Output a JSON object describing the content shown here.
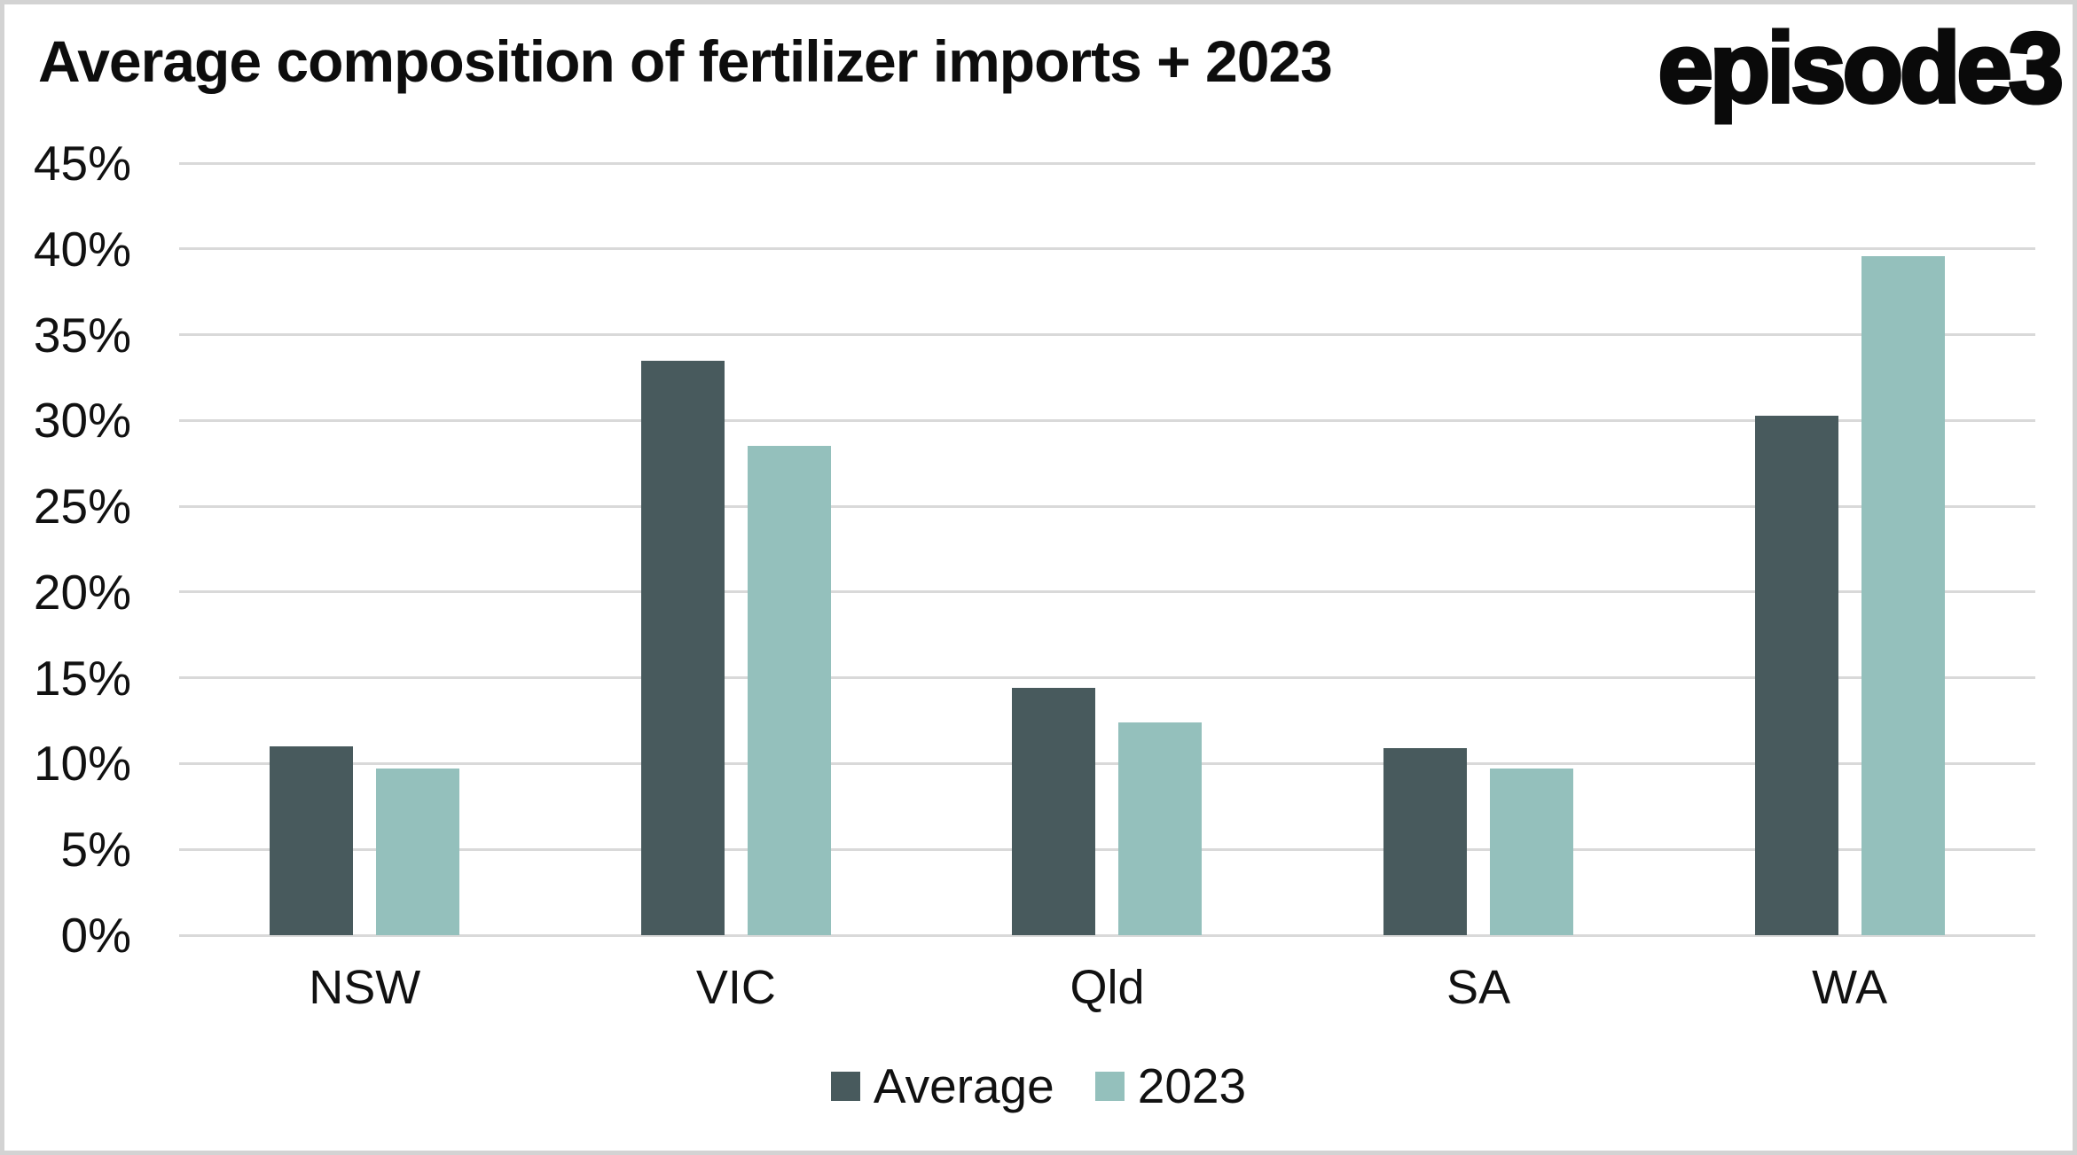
{
  "header": {
    "title": "Average composition of fertilizer imports + 2023",
    "logo": "episode3"
  },
  "colors": {
    "series_average": "#485a5d",
    "series_2023": "#94c0bc",
    "gridline": "#d9d9d9",
    "frame_border": "#d3d3d3",
    "text": "#111111"
  },
  "chart_data": {
    "type": "bar",
    "title": "Average composition of fertilizer imports + 2023",
    "categories": [
      "NSW",
      "VIC",
      "Qld",
      "SA",
      "WA"
    ],
    "series": [
      {
        "name": "Average",
        "color": "#485a5d",
        "values": [
          11.0,
          33.5,
          14.4,
          10.9,
          30.3
        ]
      },
      {
        "name": "2023",
        "color": "#94c0bc",
        "values": [
          9.7,
          28.5,
          12.4,
          9.7,
          39.6
        ]
      }
    ],
    "xlabel": "",
    "ylabel": "",
    "y_axis": {
      "min": 0,
      "max": 45,
      "step": 5,
      "tick_format": "percent"
    },
    "y_ticks": [
      "0%",
      "5%",
      "10%",
      "15%",
      "20%",
      "25%",
      "30%",
      "35%",
      "40%",
      "45%"
    ],
    "grid": true,
    "legend_position": "bottom"
  }
}
